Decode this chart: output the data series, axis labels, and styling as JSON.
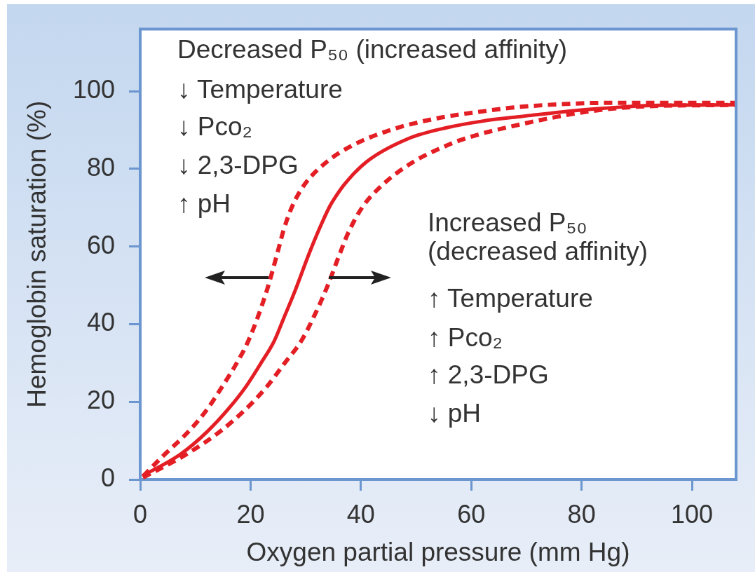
{
  "chart_data": {
    "type": "line",
    "xlabel": "Oxygen partial pressure (mm Hg)",
    "ylabel": "Hemoglobin saturation (%)",
    "xlim": [
      0,
      108
    ],
    "xticks": [
      0,
      20,
      40,
      60,
      80,
      100
    ],
    "ylim": [
      0,
      116
    ],
    "yticks": [
      0,
      20,
      40,
      60,
      80,
      100
    ],
    "grid": false,
    "legend": false,
    "series": [
      {
        "color": "#e31e24",
        "line_style": "solid",
        "x": [
          0.5,
          7.3,
          12.2,
          16,
          19.2,
          21.9,
          24.3,
          26,
          27.9,
          30.7,
          32.6,
          34.3,
          35.5,
          37,
          41,
          48.6,
          55.5,
          62,
          69,
          81,
          94,
          108
        ],
        "values": [
          1,
          6.5,
          12.4,
          18.2,
          24,
          30,
          35.7,
          41.5,
          48,
          58.5,
          65,
          70.2,
          73,
          76,
          81.8,
          87.8,
          90.6,
          92.3,
          93.5,
          95.3,
          96.4,
          96.5
        ]
      },
      {
        "color": "#e31e24",
        "line_style": "dashed",
        "x": [
          0.5,
          4.1,
          8.8,
          12.2,
          14.9,
          17.5,
          19.6,
          22.8,
          24.9,
          26,
          27.5,
          29.8,
          33.8,
          38.4,
          45.3,
          53.7,
          63,
          69,
          85,
          108
        ],
        "values": [
          0.8,
          6,
          12.4,
          18.2,
          24,
          30,
          35.7,
          48,
          58.5,
          64.3,
          70.2,
          76,
          81.8,
          86,
          90,
          93,
          95,
          96,
          97,
          97
        ]
      },
      {
        "color": "#e31e24",
        "line_style": "dashed",
        "x": [
          0.5,
          8.4,
          14.5,
          19.2,
          23,
          26.2,
          29.2,
          31.5,
          34,
          36,
          37.7,
          40.2,
          44,
          49.5,
          55.5,
          58.8,
          69,
          81.3,
          90,
          108
        ],
        "values": [
          0.5,
          6.5,
          12.4,
          18.2,
          24,
          30,
          35.7,
          42,
          50,
          57.5,
          63.5,
          70,
          76,
          81.8,
          86,
          87.8,
          91.5,
          94.8,
          96,
          96.5
        ]
      }
    ],
    "annotations": [
      "Decreased P₅₀ (increased affinity)",
      "↓ Temperature",
      "↓ Pco₂",
      "↓ 2,3-DPG",
      "↑ pH",
      "Increased P₅₀",
      "(decreased affinity)",
      "↑ Temperature",
      "↑ Pco₂",
      "↑ 2,3-DPG",
      "↓ pH"
    ]
  }
}
